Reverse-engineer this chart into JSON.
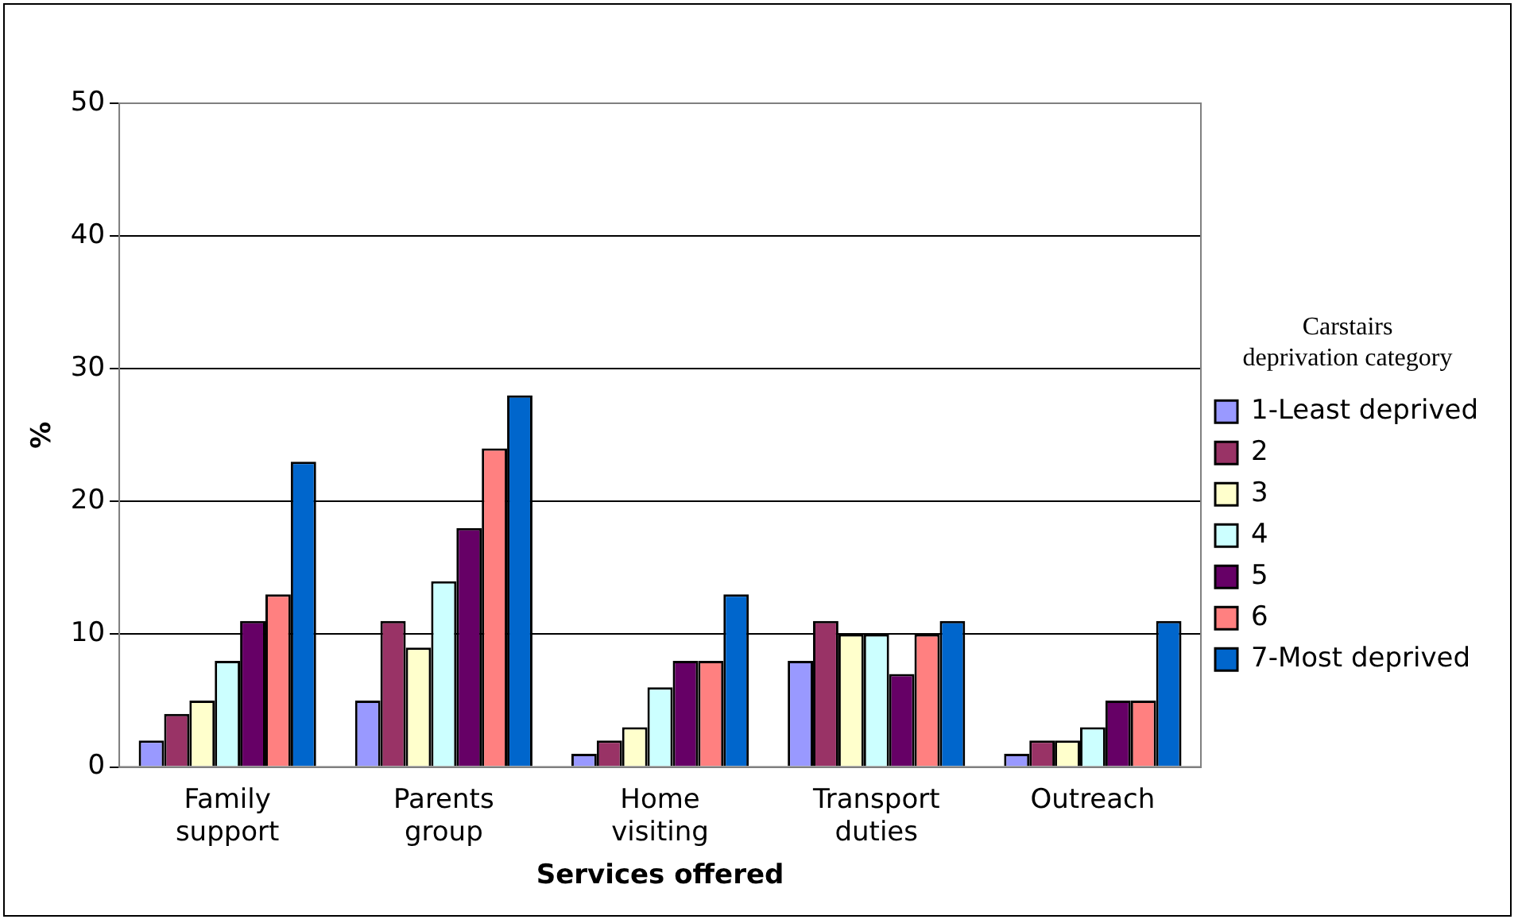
{
  "chart_data": {
    "type": "bar",
    "xlabel": "Services offered",
    "ylabel": "%",
    "legend_title": "Carstairs deprivation category",
    "categories": [
      "Family support",
      "Parents group",
      "Home visiting",
      "Transport duties",
      "Outreach"
    ],
    "series": [
      {
        "name": "1-Least deprived",
        "color": "#9999ff",
        "values": [
          2,
          5,
          1,
          8,
          1
        ]
      },
      {
        "name": "2",
        "color": "#993366",
        "values": [
          4,
          11,
          2,
          11,
          2
        ]
      },
      {
        "name": "3",
        "color": "#ffffcc",
        "values": [
          5,
          9,
          3,
          10,
          2
        ]
      },
      {
        "name": "4",
        "color": "#ccffff",
        "values": [
          8,
          14,
          6,
          10,
          3
        ]
      },
      {
        "name": "5",
        "color": "#660066",
        "values": [
          11,
          18,
          8,
          7,
          5
        ]
      },
      {
        "name": "6",
        "color": "#ff8080",
        "values": [
          13,
          24,
          8,
          10,
          5
        ]
      },
      {
        "name": "7-Most deprived",
        "color": "#0066cc",
        "values": [
          23,
          28,
          13,
          11,
          11
        ]
      }
    ],
    "ylim": [
      0,
      50
    ],
    "yticks": [
      0,
      10,
      20,
      30,
      40,
      50
    ],
    "grid": "y",
    "legend": "right"
  }
}
